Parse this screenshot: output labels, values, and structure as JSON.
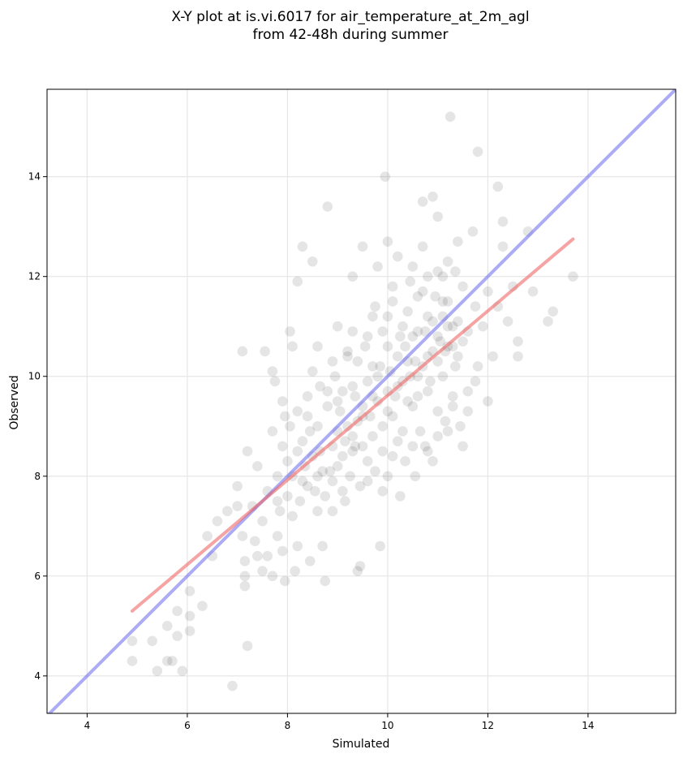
{
  "chart_data": {
    "type": "scatter",
    "title": "X-Y plot at is.vi.6017 for air_temperature_at_2m_agl",
    "subtitle": "from 42-48h during summer",
    "xlabel": "Simulated",
    "ylabel": "Observed",
    "xlim": [
      3.2,
      15.75
    ],
    "ylim": [
      3.25,
      15.75
    ],
    "xticks": [
      "4",
      "6",
      "8",
      "10",
      "12",
      "14"
    ],
    "yticks": [
      "4",
      "6",
      "8",
      "10",
      "12",
      "14"
    ],
    "xtick_values": [
      4,
      6,
      8,
      10,
      12,
      14
    ],
    "ytick_values": [
      4,
      6,
      8,
      10,
      12,
      14
    ],
    "grid": true,
    "legend": "none",
    "colors": {
      "points": "#000000",
      "identity_line": "#6666ee",
      "fit_line": "#ee6666"
    },
    "identity_line": {
      "x": [
        3.2,
        15.75
      ],
      "y": [
        3.2,
        15.75
      ]
    },
    "fit_line": {
      "x": [
        4.9,
        13.7
      ],
      "y": [
        5.3,
        12.75
      ]
    },
    "points": [
      [
        4.9,
        4.7
      ],
      [
        4.9,
        4.3
      ],
      [
        5.3,
        4.7
      ],
      [
        5.4,
        4.1
      ],
      [
        5.6,
        5.0
      ],
      [
        5.6,
        4.3
      ],
      [
        5.7,
        4.3
      ],
      [
        5.8,
        4.8
      ],
      [
        5.8,
        5.3
      ],
      [
        5.9,
        4.1
      ],
      [
        6.05,
        5.7
      ],
      [
        6.05,
        5.2
      ],
      [
        6.05,
        4.9
      ],
      [
        6.3,
        5.4
      ],
      [
        6.4,
        6.8
      ],
      [
        6.5,
        6.4
      ],
      [
        6.6,
        7.1
      ],
      [
        6.8,
        7.3
      ],
      [
        6.9,
        3.8
      ],
      [
        7.0,
        7.8
      ],
      [
        7.0,
        7.4
      ],
      [
        7.1,
        6.8
      ],
      [
        7.15,
        6.3
      ],
      [
        7.15,
        6.0
      ],
      [
        7.15,
        5.8
      ],
      [
        7.2,
        4.6
      ],
      [
        7.2,
        8.5
      ],
      [
        7.1,
        10.5
      ],
      [
        7.3,
        7.4
      ],
      [
        7.35,
        6.7
      ],
      [
        7.4,
        6.4
      ],
      [
        7.5,
        6.1
      ],
      [
        7.55,
        10.5
      ],
      [
        7.6,
        6.4
      ],
      [
        7.7,
        6.0
      ],
      [
        7.7,
        10.1
      ],
      [
        7.75,
        9.9
      ],
      [
        7.8,
        6.8
      ],
      [
        7.8,
        7.5
      ],
      [
        7.9,
        6.5
      ],
      [
        7.9,
        9.5
      ],
      [
        7.95,
        5.9
      ],
      [
        7.95,
        9.2
      ],
      [
        8.0,
        8.3
      ],
      [
        8.05,
        10.9
      ],
      [
        8.1,
        10.6
      ],
      [
        8.1,
        7.2
      ],
      [
        8.15,
        6.1
      ],
      [
        8.2,
        6.6
      ],
      [
        8.2,
        11.9
      ],
      [
        8.3,
        12.6
      ],
      [
        8.3,
        8.7
      ],
      [
        8.4,
        9.6
      ],
      [
        8.4,
        7.8
      ],
      [
        8.45,
        6.3
      ],
      [
        8.5,
        12.3
      ],
      [
        8.5,
        10.1
      ],
      [
        8.6,
        10.6
      ],
      [
        8.6,
        9.0
      ],
      [
        8.7,
        8.1
      ],
      [
        8.7,
        6.6
      ],
      [
        8.75,
        5.9
      ],
      [
        8.8,
        13.4
      ],
      [
        8.9,
        10.3
      ],
      [
        8.9,
        7.3
      ],
      [
        9.0,
        11.0
      ],
      [
        9.0,
        8.9
      ],
      [
        9.1,
        9.7
      ],
      [
        9.1,
        7.7
      ],
      [
        9.2,
        10.4
      ],
      [
        9.3,
        12.0
      ],
      [
        9.3,
        8.5
      ],
      [
        9.4,
        6.1
      ],
      [
        9.45,
        6.2
      ],
      [
        9.5,
        12.6
      ],
      [
        9.5,
        9.2
      ],
      [
        9.6,
        10.8
      ],
      [
        9.6,
        7.9
      ],
      [
        9.7,
        11.2
      ],
      [
        9.7,
        9.6
      ],
      [
        9.8,
        12.2
      ],
      [
        9.8,
        10.0
      ],
      [
        9.85,
        6.6
      ],
      [
        9.9,
        7.7
      ],
      [
        9.95,
        14.0
      ],
      [
        10.0,
        12.7
      ],
      [
        10.0,
        10.6
      ],
      [
        10.0,
        9.3
      ],
      [
        10.1,
        8.4
      ],
      [
        10.1,
        11.5
      ],
      [
        10.2,
        12.4
      ],
      [
        10.2,
        9.8
      ],
      [
        10.25,
        7.6
      ],
      [
        10.3,
        11.0
      ],
      [
        10.3,
        8.9
      ],
      [
        10.4,
        10.3
      ],
      [
        10.5,
        12.2
      ],
      [
        10.5,
        9.4
      ],
      [
        10.55,
        8.0
      ],
      [
        10.6,
        11.6
      ],
      [
        10.6,
        10.0
      ],
      [
        10.7,
        13.5
      ],
      [
        10.7,
        12.6
      ],
      [
        10.75,
        8.6
      ],
      [
        10.8,
        11.2
      ],
      [
        10.8,
        9.7
      ],
      [
        10.9,
        13.6
      ],
      [
        10.9,
        10.5
      ],
      [
        10.9,
        8.3
      ],
      [
        11.0,
        13.2
      ],
      [
        11.0,
        12.1
      ],
      [
        11.0,
        10.8
      ],
      [
        11.0,
        9.3
      ],
      [
        11.1,
        11.5
      ],
      [
        11.1,
        10.0
      ],
      [
        11.2,
        12.3
      ],
      [
        11.2,
        10.6
      ],
      [
        11.2,
        8.9
      ],
      [
        11.25,
        15.2
      ],
      [
        11.3,
        11.0
      ],
      [
        11.3,
        9.6
      ],
      [
        11.4,
        12.7
      ],
      [
        11.4,
        10.4
      ],
      [
        11.5,
        11.8
      ],
      [
        11.5,
        8.6
      ],
      [
        11.6,
        10.9
      ],
      [
        11.6,
        9.3
      ],
      [
        11.7,
        12.9
      ],
      [
        11.75,
        11.4
      ],
      [
        11.8,
        14.5
      ],
      [
        11.8,
        10.2
      ],
      [
        11.9,
        11.0
      ],
      [
        12.0,
        9.5
      ],
      [
        12.0,
        11.7
      ],
      [
        12.1,
        10.4
      ],
      [
        12.2,
        13.8
      ],
      [
        12.2,
        11.4
      ],
      [
        12.3,
        13.1
      ],
      [
        12.3,
        12.6
      ],
      [
        12.4,
        11.1
      ],
      [
        12.5,
        11.8
      ],
      [
        12.6,
        10.7
      ],
      [
        12.6,
        10.4
      ],
      [
        12.8,
        12.9
      ],
      [
        12.9,
        11.7
      ],
      [
        13.2,
        11.1
      ],
      [
        13.3,
        11.3
      ],
      [
        13.7,
        12.0
      ],
      [
        8.2,
        8.5
      ],
      [
        8.3,
        7.9
      ],
      [
        8.4,
        9.2
      ],
      [
        8.5,
        8.4
      ],
      [
        8.6,
        8.0
      ],
      [
        8.65,
        9.8
      ],
      [
        8.8,
        9.4
      ],
      [
        8.9,
        8.6
      ],
      [
        9.0,
        9.5
      ],
      [
        9.1,
        8.4
      ],
      [
        9.15,
        8.7
      ],
      [
        9.2,
        9.0
      ],
      [
        9.3,
        9.8
      ],
      [
        9.3,
        8.8
      ],
      [
        9.35,
        8.6
      ],
      [
        9.4,
        9.1
      ],
      [
        9.5,
        9.4
      ],
      [
        9.5,
        8.6
      ],
      [
        9.6,
        9.9
      ],
      [
        9.65,
        9.2
      ],
      [
        9.7,
        8.8
      ],
      [
        9.8,
        9.5
      ],
      [
        9.85,
        10.2
      ],
      [
        9.9,
        9.0
      ],
      [
        10.0,
        9.7
      ],
      [
        10.05,
        10.1
      ],
      [
        10.1,
        9.2
      ],
      [
        10.15,
        9.6
      ],
      [
        10.2,
        10.4
      ],
      [
        10.3,
        9.9
      ],
      [
        10.35,
        10.6
      ],
      [
        10.4,
        9.5
      ],
      [
        10.45,
        10.0
      ],
      [
        10.5,
        10.8
      ],
      [
        10.55,
        10.3
      ],
      [
        10.6,
        9.6
      ],
      [
        10.7,
        10.2
      ],
      [
        10.75,
        10.9
      ],
      [
        10.8,
        10.4
      ],
      [
        10.85,
        9.9
      ],
      [
        10.9,
        11.1
      ],
      [
        11.0,
        10.3
      ],
      [
        11.05,
        10.7
      ],
      [
        11.1,
        11.2
      ],
      [
        11.15,
        10.5
      ],
      [
        11.2,
        11.0
      ],
      [
        11.3,
        10.6
      ],
      [
        11.35,
        10.2
      ],
      [
        11.4,
        11.1
      ],
      [
        11.5,
        10.7
      ],
      [
        9.3,
        10.9
      ],
      [
        9.4,
        10.3
      ],
      [
        9.55,
        10.6
      ],
      [
        9.7,
        10.2
      ],
      [
        9.75,
        11.4
      ],
      [
        9.9,
        10.9
      ],
      [
        10.0,
        11.2
      ],
      [
        10.1,
        11.8
      ],
      [
        10.25,
        10.8
      ],
      [
        10.4,
        11.3
      ],
      [
        10.45,
        11.9
      ],
      [
        10.6,
        10.9
      ],
      [
        10.7,
        11.7
      ],
      [
        10.8,
        12.0
      ],
      [
        10.95,
        11.6
      ],
      [
        11.1,
        12.0
      ],
      [
        11.2,
        11.5
      ],
      [
        11.35,
        12.1
      ],
      [
        8.6,
        7.3
      ],
      [
        8.75,
        7.6
      ],
      [
        8.9,
        7.9
      ],
      [
        9.0,
        8.2
      ],
      [
        9.15,
        7.5
      ],
      [
        9.25,
        8.0
      ],
      [
        9.45,
        7.8
      ],
      [
        9.6,
        8.3
      ],
      [
        9.75,
        8.1
      ],
      [
        9.9,
        8.5
      ],
      [
        10.0,
        8.0
      ],
      [
        10.2,
        8.7
      ],
      [
        10.35,
        8.3
      ],
      [
        10.5,
        8.6
      ],
      [
        10.65,
        8.9
      ],
      [
        10.8,
        8.5
      ],
      [
        11.0,
        8.8
      ],
      [
        11.15,
        9.1
      ],
      [
        11.3,
        9.4
      ],
      [
        11.45,
        9.0
      ],
      [
        11.6,
        9.7
      ],
      [
        11.75,
        9.9
      ],
      [
        7.4,
        8.2
      ],
      [
        7.5,
        7.1
      ],
      [
        7.6,
        7.7
      ],
      [
        7.7,
        8.9
      ],
      [
        7.8,
        8.0
      ],
      [
        7.85,
        7.3
      ],
      [
        7.9,
        8.6
      ],
      [
        8.0,
        7.6
      ],
      [
        8.05,
        9.0
      ],
      [
        8.1,
        8.0
      ],
      [
        8.2,
        9.3
      ],
      [
        8.25,
        7.5
      ],
      [
        8.35,
        8.2
      ],
      [
        8.45,
        8.9
      ],
      [
        8.55,
        7.7
      ],
      [
        8.65,
        8.5
      ],
      [
        8.8,
        9.7
      ],
      [
        8.85,
        8.1
      ],
      [
        8.95,
        10.0
      ],
      [
        9.05,
        9.3
      ],
      [
        9.2,
        10.5
      ],
      [
        9.35,
        9.6
      ]
    ]
  }
}
